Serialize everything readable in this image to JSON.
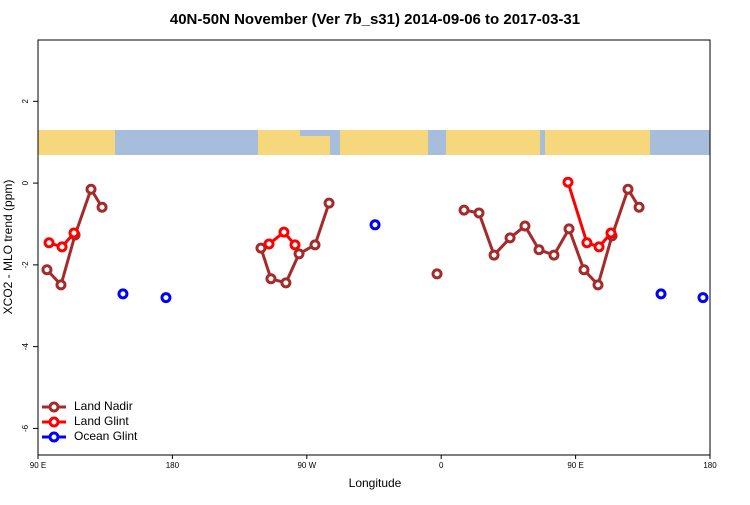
{
  "chart_data": {
    "type": "line",
    "title": "40N-50N November (Ver 7b_s31)   2014-09-06 to 2017-03-31",
    "x_label": "Longitude",
    "y_label": "XCO2 - MLO trend (ppm)",
    "xlim": [
      90,
      540
    ],
    "xticks": [
      {
        "value": 90,
        "label": "90 E"
      },
      180,
      {
        "value": 270,
        "label": "90 W"
      },
      {
        "value": 360,
        "label": "0"
      },
      {
        "value": 450,
        "label": "90 E"
      },
      {
        "value": 540,
        "label": "180"
      }
    ],
    "ylim": [
      -6.65,
      3.5
    ],
    "yticks": [
      -6,
      -4,
      -2,
      0,
      2
    ],
    "legend": "bottom-left",
    "series": [
      {
        "name": "Land Nadir",
        "color": "#a52a2a",
        "x": [
          96,
          105.4,
          114.8,
          125.5,
          132.9,
          null,
          239.3,
          246,
          256,
          264.8,
          275.5,
          284.9,
          null,
          357.2,
          null,
          375.3,
          385.3,
          395.4,
          406.1,
          416.1,
          425.5,
          435.5,
          445.6,
          455.6,
          465,
          474.4,
          485.1,
          492.5
        ],
        "values": [
          -2.12,
          -2.49,
          -1.27,
          -0.15,
          -0.59,
          null,
          -1.59,
          -2.34,
          -2.44,
          -1.73,
          -1.51,
          -0.49,
          null,
          -2.22,
          null,
          -0.66,
          -0.73,
          -1.76,
          -1.34,
          -1.05,
          -1.63,
          -1.76,
          -1.12,
          -2.12,
          -2.49,
          -1.29,
          -0.15,
          -0.59
        ]
      },
      {
        "name": "Land Glint",
        "color": "#ff0000",
        "x": [
          97.4,
          106.1,
          114.1,
          null,
          244.7,
          254.7,
          262.1,
          null,
          444.9,
          457.6,
          465.7,
          473.7
        ],
        "values": [
          -1.46,
          -1.56,
          -1.22,
          null,
          -1.49,
          -1.2,
          -1.51,
          null,
          0.02,
          -1.46,
          -1.56,
          -1.22
        ]
      },
      {
        "name": "Ocean Glint",
        "color": "#0000ff",
        "x": [
          146.9,
          null,
          175.7,
          null,
          315.7,
          null,
          507.2,
          null,
          535.3
        ],
        "values": [
          -2.71,
          null,
          -2.8,
          null,
          -1.02,
          null,
          -2.71,
          null,
          -2.8
        ]
      }
    ]
  }
}
